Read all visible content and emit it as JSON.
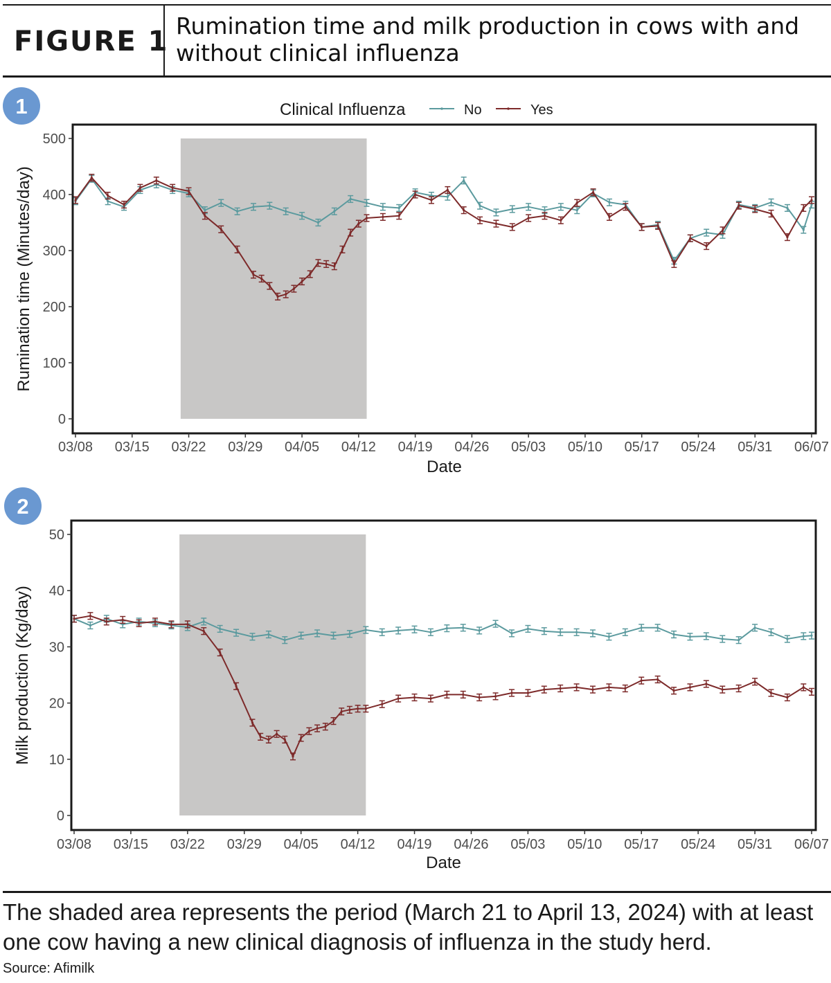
{
  "header": {
    "figure_label": "FIGURE 1",
    "title": "Rumination time and milk production in cows with and without clinical influenza"
  },
  "legend": {
    "title": "Clinical Influenza",
    "entries": [
      {
        "label": "No",
        "color": "#5b9a9e"
      },
      {
        "label": "Yes",
        "color": "#7d2a2a"
      }
    ]
  },
  "colors": {
    "no": "#5b9a9e",
    "yes": "#7d2a2a",
    "shade": "#c8c7c6",
    "badge": "#6a98d1"
  },
  "chart_data": [
    {
      "type": "line",
      "badge": "1",
      "xlabel": "Date",
      "ylabel": "Rumination time (Minutes/day)",
      "ylim": [
        0,
        500
      ],
      "yticks": [
        0,
        100,
        200,
        300,
        400,
        500
      ],
      "xticks": [
        "03/08",
        "03/15",
        "03/22",
        "03/29",
        "04/05",
        "04/12",
        "04/19",
        "04/26",
        "05/03",
        "05/10",
        "05/17",
        "05/24",
        "05/31",
        "06/07"
      ],
      "x_range": [
        "2024-03-08",
        "2024-06-07"
      ],
      "shaded_range": [
        "2024-03-21",
        "2024-04-13"
      ],
      "grid": false,
      "error_bars": true,
      "legend_position": "top",
      "series": [
        {
          "name": "No",
          "color": "#5b9a9e",
          "x": [
            "2024-03-08",
            "2024-03-10",
            "2024-03-12",
            "2024-03-14",
            "2024-03-16",
            "2024-03-18",
            "2024-03-20",
            "2024-03-22",
            "2024-03-24",
            "2024-03-26",
            "2024-03-28",
            "2024-03-30",
            "2024-04-01",
            "2024-04-03",
            "2024-04-05",
            "2024-04-07",
            "2024-04-09",
            "2024-04-11",
            "2024-04-13",
            "2024-04-15",
            "2024-04-17",
            "2024-04-19",
            "2024-04-21",
            "2024-04-23",
            "2024-04-25",
            "2024-04-27",
            "2024-04-29",
            "2024-05-01",
            "2024-05-03",
            "2024-05-05",
            "2024-05-07",
            "2024-05-09",
            "2024-05-11",
            "2024-05-13",
            "2024-05-15",
            "2024-05-17",
            "2024-05-19",
            "2024-05-21",
            "2024-05-23",
            "2024-05-25",
            "2024-05-27",
            "2024-05-29",
            "2024-05-31",
            "2024-06-02",
            "2024-06-04",
            "2024-06-06",
            "2024-06-07"
          ],
          "y": [
            388,
            428,
            388,
            378,
            408,
            418,
            408,
            402,
            372,
            385,
            370,
            378,
            380,
            370,
            362,
            350,
            370,
            392,
            385,
            378,
            376,
            404,
            398,
            396,
            425,
            380,
            368,
            374,
            378,
            372,
            378,
            372,
            402,
            386,
            382,
            342,
            346,
            282,
            322,
            332,
            328,
            382,
            376,
            386,
            376,
            337,
            382
          ]
        },
        {
          "name": "Yes",
          "color": "#7d2a2a",
          "x": [
            "2024-03-08",
            "2024-03-10",
            "2024-03-12",
            "2024-03-14",
            "2024-03-16",
            "2024-03-18",
            "2024-03-20",
            "2024-03-22",
            "2024-03-24",
            "2024-03-26",
            "2024-03-28",
            "2024-03-30",
            "2024-03-31",
            "2024-04-01",
            "2024-04-02",
            "2024-04-03",
            "2024-04-04",
            "2024-04-05",
            "2024-04-06",
            "2024-04-07",
            "2024-04-08",
            "2024-04-09",
            "2024-04-10",
            "2024-04-11",
            "2024-04-12",
            "2024-04-13",
            "2024-04-15",
            "2024-04-17",
            "2024-04-19",
            "2024-04-21",
            "2024-04-23",
            "2024-04-25",
            "2024-04-27",
            "2024-04-29",
            "2024-05-01",
            "2024-05-03",
            "2024-05-05",
            "2024-05-07",
            "2024-05-09",
            "2024-05-11",
            "2024-05-13",
            "2024-05-15",
            "2024-05-17",
            "2024-05-19",
            "2024-05-21",
            "2024-05-23",
            "2024-05-25",
            "2024-05-27",
            "2024-05-29",
            "2024-05-31",
            "2024-06-02",
            "2024-06-04",
            "2024-06-06",
            "2024-06-07"
          ],
          "y": [
            390,
            430,
            398,
            382,
            412,
            425,
            412,
            406,
            362,
            338,
            302,
            257,
            250,
            237,
            218,
            222,
            232,
            245,
            258,
            278,
            276,
            272,
            302,
            332,
            348,
            358,
            360,
            362,
            400,
            390,
            408,
            372,
            354,
            348,
            342,
            358,
            362,
            354,
            385,
            404,
            360,
            378,
            342,
            344,
            276,
            322,
            308,
            336,
            380,
            374,
            366,
            324,
            376,
            390
          ]
        }
      ]
    },
    {
      "type": "line",
      "badge": "2",
      "xlabel": "Date",
      "ylabel": "Milk production (Kg/day)",
      "ylim": [
        0,
        50
      ],
      "yticks": [
        0,
        10,
        20,
        30,
        40,
        50
      ],
      "xticks": [
        "03/08",
        "03/15",
        "03/22",
        "03/29",
        "04/05",
        "04/12",
        "04/19",
        "04/26",
        "05/03",
        "05/10",
        "05/17",
        "05/24",
        "05/31",
        "06/07"
      ],
      "x_range": [
        "2024-03-08",
        "2024-06-07"
      ],
      "shaded_range": [
        "2024-03-21",
        "2024-04-13"
      ],
      "grid": false,
      "error_bars": true,
      "series": [
        {
          "name": "No",
          "color": "#5b9a9e",
          "x": [
            "2024-03-08",
            "2024-03-10",
            "2024-03-12",
            "2024-03-14",
            "2024-03-16",
            "2024-03-18",
            "2024-03-20",
            "2024-03-22",
            "2024-03-24",
            "2024-03-26",
            "2024-03-28",
            "2024-03-30",
            "2024-04-01",
            "2024-04-03",
            "2024-04-05",
            "2024-04-07",
            "2024-04-09",
            "2024-04-11",
            "2024-04-13",
            "2024-04-15",
            "2024-04-17",
            "2024-04-19",
            "2024-04-21",
            "2024-04-23",
            "2024-04-25",
            "2024-04-27",
            "2024-04-29",
            "2024-05-01",
            "2024-05-03",
            "2024-05-05",
            "2024-05-07",
            "2024-05-09",
            "2024-05-11",
            "2024-05-13",
            "2024-05-15",
            "2024-05-17",
            "2024-05-19",
            "2024-05-21",
            "2024-05-23",
            "2024-05-25",
            "2024-05-27",
            "2024-05-29",
            "2024-05-31",
            "2024-06-02",
            "2024-06-04",
            "2024-06-06",
            "2024-06-07"
          ],
          "y": [
            35,
            33.8,
            35,
            34,
            34.5,
            34.2,
            33.8,
            33.5,
            34.5,
            33.2,
            32.5,
            31.8,
            32.2,
            31.2,
            32.0,
            32.4,
            32.0,
            32.3,
            33.0,
            32.6,
            32.9,
            33.1,
            32.6,
            33.3,
            33.4,
            32.9,
            34.1,
            32.4,
            33.2,
            32.8,
            32.6,
            32.6,
            32.4,
            31.8,
            32.6,
            33.4,
            33.4,
            32.2,
            31.8,
            31.9,
            31.4,
            31.2,
            33.4,
            32.6,
            31.4,
            31.9,
            32.0
          ]
        },
        {
          "name": "Yes",
          "color": "#7d2a2a",
          "x": [
            "2024-03-08",
            "2024-03-10",
            "2024-03-12",
            "2024-03-14",
            "2024-03-16",
            "2024-03-18",
            "2024-03-20",
            "2024-03-22",
            "2024-03-24",
            "2024-03-26",
            "2024-03-28",
            "2024-03-30",
            "2024-03-31",
            "2024-04-01",
            "2024-04-02",
            "2024-04-03",
            "2024-04-04",
            "2024-04-05",
            "2024-04-06",
            "2024-04-07",
            "2024-04-08",
            "2024-04-09",
            "2024-04-10",
            "2024-04-11",
            "2024-04-12",
            "2024-04-13",
            "2024-04-15",
            "2024-04-17",
            "2024-04-19",
            "2024-04-21",
            "2024-04-23",
            "2024-04-25",
            "2024-04-27",
            "2024-04-29",
            "2024-05-01",
            "2024-05-03",
            "2024-05-05",
            "2024-05-07",
            "2024-05-09",
            "2024-05-11",
            "2024-05-13",
            "2024-05-15",
            "2024-05-17",
            "2024-05-19",
            "2024-05-21",
            "2024-05-23",
            "2024-05-25",
            "2024-05-27",
            "2024-05-29",
            "2024-05-31",
            "2024-06-02",
            "2024-06-04",
            "2024-06-06",
            "2024-06-07"
          ],
          "y": [
            35,
            35.5,
            34.5,
            34.8,
            34.2,
            34.5,
            34.0,
            34.0,
            32.8,
            29.0,
            23.0,
            16.5,
            14.0,
            13.5,
            14.5,
            13.5,
            10.5,
            13.8,
            15.0,
            15.5,
            15.8,
            16.8,
            18.5,
            18.8,
            19.0,
            19.0,
            19.8,
            20.8,
            21.0,
            20.8,
            21.5,
            21.5,
            21.0,
            21.2,
            21.8,
            21.8,
            22.4,
            22.6,
            22.8,
            22.4,
            22.8,
            22.6,
            24.0,
            24.2,
            22.2,
            22.8,
            23.4,
            22.4,
            22.6,
            23.8,
            21.8,
            21.0,
            22.8,
            22.0
          ]
        }
      ]
    }
  ],
  "caption": "The shaded area represents the period (March 21 to April 13, 2024) with at least one cow having a new clinical diagnosis of influenza in the study herd.",
  "source": "Source: Afimilk"
}
